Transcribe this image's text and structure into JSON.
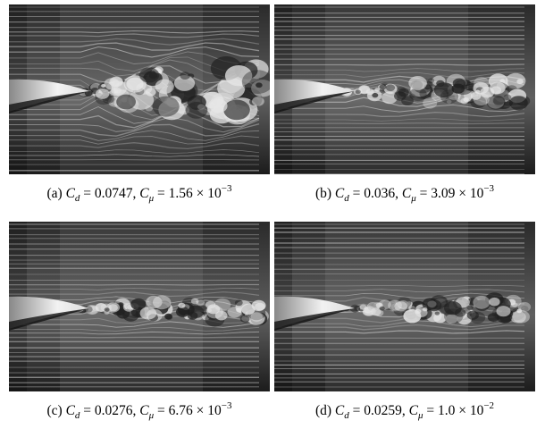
{
  "figure": {
    "panels": [
      {
        "caption": [
          {
            "text": "(a) ",
            "style": "normal"
          },
          {
            "text": "C",
            "style": "italic"
          },
          {
            "text": "d",
            "style": "sub"
          },
          {
            "text": " = 0.0747, ",
            "style": "normal"
          },
          {
            "text": "C",
            "style": "italic"
          },
          {
            "text": "μ",
            "style": "sub"
          },
          {
            "text": " = 1.56 × 10",
            "style": "normal"
          },
          {
            "text": "−3",
            "style": "sup"
          }
        ]
      },
      {
        "caption": [
          {
            "text": "(b) ",
            "style": "normal"
          },
          {
            "text": "C",
            "style": "italic"
          },
          {
            "text": "d",
            "style": "sub"
          },
          {
            "text": " = 0.036, ",
            "style": "normal"
          },
          {
            "text": "C",
            "style": "italic"
          },
          {
            "text": "μ",
            "style": "sub"
          },
          {
            "text": " = 3.09 × 10",
            "style": "normal"
          },
          {
            "text": "−3",
            "style": "sup"
          }
        ]
      },
      {
        "caption": [
          {
            "text": "(c) ",
            "style": "normal"
          },
          {
            "text": "C",
            "style": "italic"
          },
          {
            "text": "d",
            "style": "sub"
          },
          {
            "text": " = 0.0276, ",
            "style": "normal"
          },
          {
            "text": "C",
            "style": "italic"
          },
          {
            "text": "μ",
            "style": "sub"
          },
          {
            "text": " = 6.76 × 10",
            "style": "normal"
          },
          {
            "text": "−3",
            "style": "sup"
          }
        ]
      },
      {
        "caption": [
          {
            "text": "(d) ",
            "style": "normal"
          },
          {
            "text": "C",
            "style": "italic"
          },
          {
            "text": "d",
            "style": "sub"
          },
          {
            "text": " = 0.0259, ",
            "style": "normal"
          },
          {
            "text": "C",
            "style": "italic"
          },
          {
            "text": "μ",
            "style": "sub"
          },
          {
            "text": " = 1.0 × 10",
            "style": "normal"
          },
          {
            "text": "−2",
            "style": "sup"
          }
        ]
      }
    ]
  }
}
